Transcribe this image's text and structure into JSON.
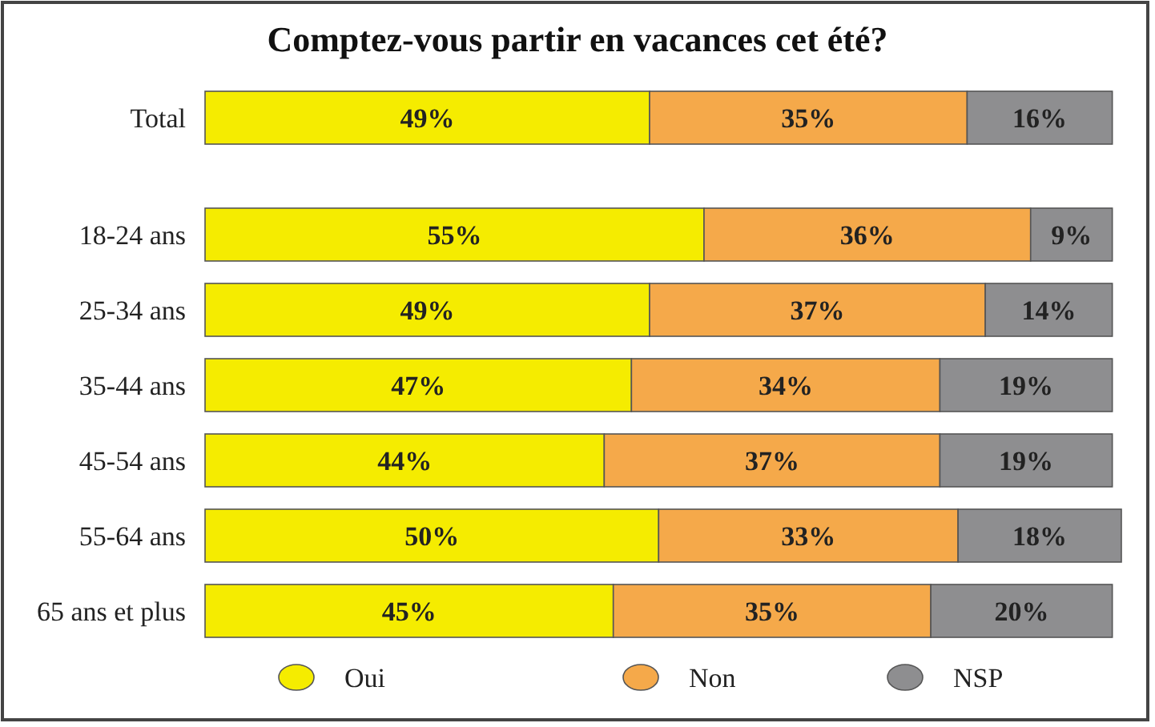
{
  "chart_data": {
    "type": "bar",
    "orientation": "horizontal",
    "stacked": true,
    "title": "Comptez-vous partir en vacances cet été?",
    "categories": [
      "Total",
      "18-24 ans",
      "25-34 ans",
      "35-44 ans",
      "45-54 ans",
      "55-64 ans",
      "65 ans et plus"
    ],
    "series": [
      {
        "name": "Oui",
        "color": "#f5ec00",
        "values": [
          49,
          55,
          49,
          47,
          44,
          50,
          45
        ],
        "value_labels": [
          "49%",
          "55%",
          "49%",
          "47%",
          "44%",
          "50%",
          "45%"
        ]
      },
      {
        "name": "Non",
        "color": "#f5a94a",
        "values": [
          35,
          36,
          37,
          34,
          37,
          33,
          35
        ],
        "value_labels": [
          "35%",
          "36%",
          "37%",
          "34%",
          "37%",
          "33%",
          "35%"
        ]
      },
      {
        "name": "NSP",
        "color": "#8e8e90",
        "values": [
          16,
          9,
          14,
          19,
          19,
          18,
          20
        ],
        "value_labels": [
          "16%",
          "9%",
          "14%",
          "19%",
          "19%",
          "18%",
          "20%"
        ]
      }
    ],
    "legend": "bottom"
  }
}
